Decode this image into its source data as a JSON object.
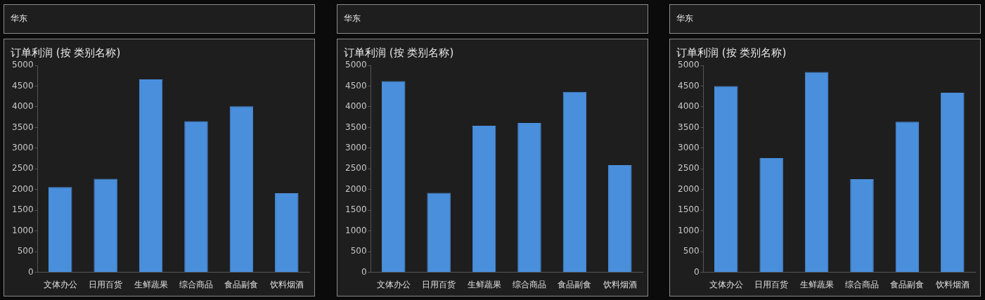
{
  "chart_data": [
    {
      "type": "bar",
      "subtitle": "华东",
      "title": "订单利润 (按 类别名称)",
      "categories": [
        "文体办公",
        "日用百货",
        "生鲜蔬果",
        "综合商品",
        "食品副食",
        "饮料烟酒"
      ],
      "values": [
        2060,
        2260,
        4660,
        3650,
        4010,
        1910
      ],
      "color": "#4a8fdc",
      "ylim": [
        0,
        5000
      ],
      "yticks": [
        0,
        500,
        1000,
        1500,
        2000,
        2500,
        3000,
        3500,
        4000,
        4500,
        5000
      ],
      "grid": false,
      "legend": false
    },
    {
      "type": "bar",
      "subtitle": "华东",
      "title": "订单利润 (按 类别名称)",
      "categories": [
        "文体办公",
        "日用百货",
        "生鲜蔬果",
        "综合商品",
        "食品副食",
        "饮料烟酒"
      ],
      "values": [
        4620,
        1920,
        3540,
        3610,
        4360,
        2590
      ],
      "color": "#4a8fdc",
      "ylim": [
        0,
        5000
      ],
      "yticks": [
        0,
        500,
        1000,
        1500,
        2000,
        2500,
        3000,
        3500,
        4000,
        4500,
        5000
      ],
      "grid": false,
      "legend": false
    },
    {
      "type": "bar",
      "subtitle": "华东",
      "title": "订单利润 (按 类别名称)",
      "categories": [
        "文体办公",
        "日用百货",
        "生鲜蔬果",
        "综合商品",
        "食品副食",
        "饮料烟酒"
      ],
      "values": [
        4500,
        2760,
        4840,
        2250,
        3640,
        4340
      ],
      "color": "#4a8fdc",
      "ylim": [
        0,
        5000
      ],
      "yticks": [
        0,
        500,
        1000,
        1500,
        2000,
        2500,
        3000,
        3500,
        4000,
        4500,
        5000
      ],
      "grid": false,
      "legend": false
    }
  ]
}
